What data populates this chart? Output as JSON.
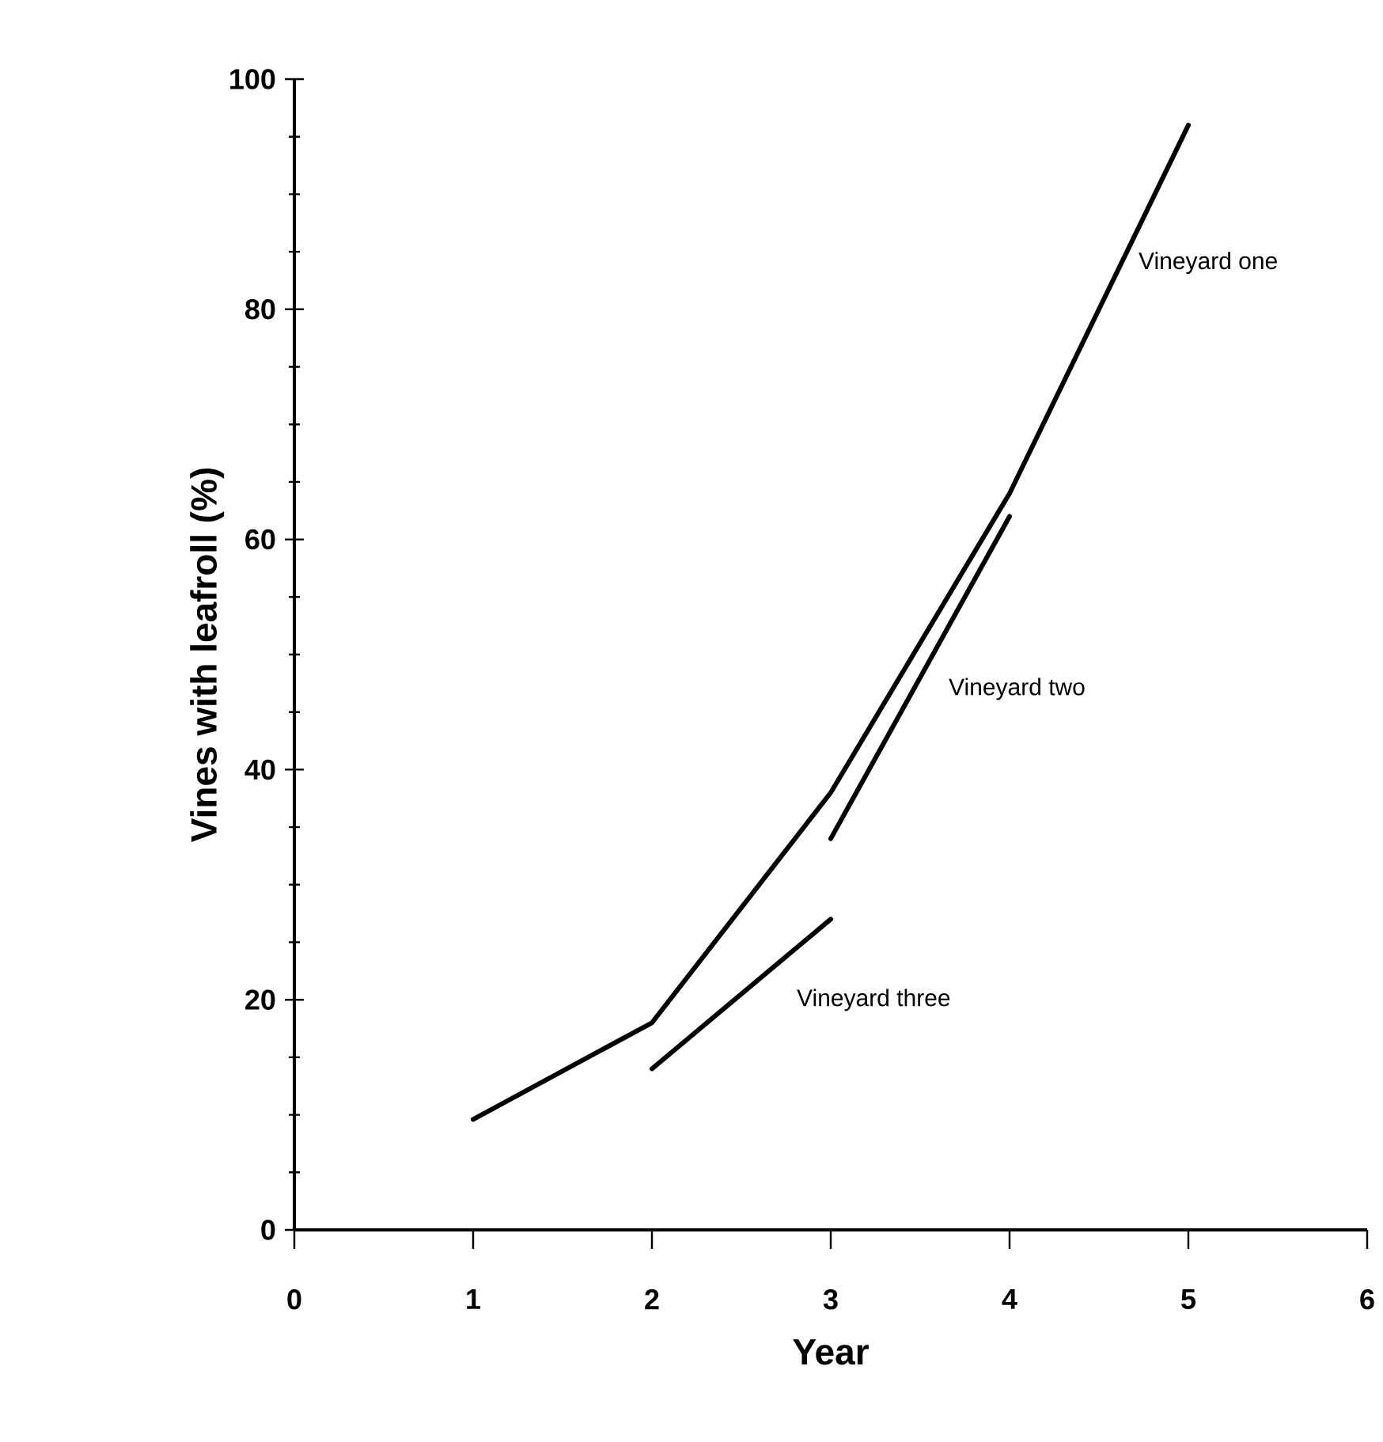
{
  "chart_data": {
    "type": "line",
    "xlabel": "Year",
    "ylabel": "Vines with leafroll (%)",
    "series": [
      {
        "name": "Vineyard one",
        "color": "#000000",
        "x": [
          1,
          2,
          3,
          4,
          5
        ],
        "values": [
          9.6,
          18,
          38,
          64,
          96
        ]
      },
      {
        "name": "Vineyard two",
        "color": "#000000",
        "x": [
          3,
          4
        ],
        "values": [
          34,
          62
        ]
      },
      {
        "name": "Vineyard three",
        "color": "#000000",
        "x": [
          2,
          3
        ],
        "values": [
          14,
          27
        ]
      }
    ],
    "xlim": [
      0,
      6
    ],
    "ylim": [
      0,
      100
    ],
    "xticks": [
      0,
      1,
      2,
      3,
      4,
      5,
      6
    ],
    "yticks": [
      0,
      20,
      40,
      60,
      80,
      100
    ],
    "grid": false,
    "legend": false,
    "marker": "none",
    "line_style": "solid"
  }
}
